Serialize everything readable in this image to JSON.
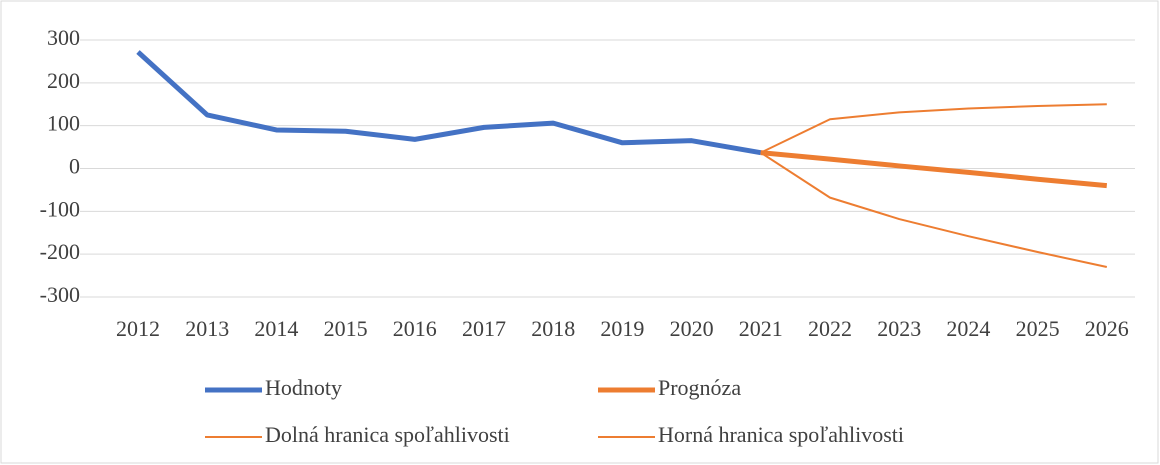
{
  "chart_data": {
    "type": "line",
    "categories": [
      "2012",
      "2013",
      "2014",
      "2015",
      "2016",
      "2017",
      "2018",
      "2019",
      "2020",
      "2021",
      "2022",
      "2023",
      "2024",
      "2025",
      "2026"
    ],
    "series": [
      {
        "name": "Hodnoty",
        "color": "#4472c4",
        "values": [
          272,
          125,
          90,
          87,
          68,
          96,
          106,
          60,
          65,
          37,
          null,
          null,
          null,
          null,
          null
        ]
      },
      {
        "name": "Prognóza",
        "color": "#ed7d31",
        "values": [
          null,
          null,
          null,
          null,
          null,
          null,
          null,
          null,
          null,
          37,
          22,
          6,
          -9,
          -25,
          -40
        ]
      },
      {
        "name": "Dolná hranica spoľahlivosti",
        "color": "#ed7d31",
        "values": [
          null,
          null,
          null,
          null,
          null,
          null,
          null,
          null,
          null,
          37,
          -68,
          -118,
          -158,
          -195,
          -230
        ]
      },
      {
        "name": "Horná hranica spoľahlivosti",
        "color": "#ed7d31",
        "values": [
          null,
          null,
          null,
          null,
          null,
          null,
          null,
          null,
          null,
          37,
          115,
          131,
          140,
          146,
          150
        ]
      }
    ],
    "ylim": [
      -300,
      300
    ],
    "yticks": [
      -300,
      -200,
      -100,
      0,
      100,
      200,
      300
    ],
    "grid": true,
    "legend": "bottom"
  }
}
